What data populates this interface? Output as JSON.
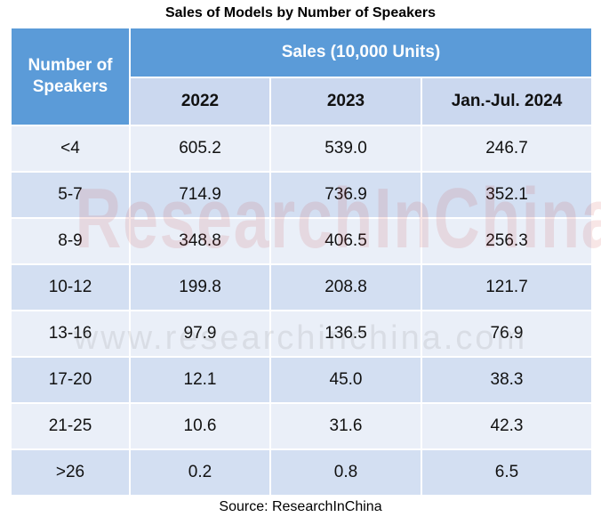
{
  "title": "Sales of Models by Number of Speakers",
  "table": {
    "header": {
      "row_label": "Number of Speakers",
      "group": "Sales (10,000 Units)",
      "columns": [
        "2022",
        "2023",
        "Jan.-Jul. 2024"
      ]
    },
    "rows": [
      [
        "<4",
        "605.2",
        "539.0",
        "246.7"
      ],
      [
        "5-7",
        "714.9",
        "736.9",
        "352.1"
      ],
      [
        "8-9",
        "348.8",
        "406.5",
        "256.3"
      ],
      [
        "10-12",
        "199.8",
        "208.8",
        "121.7"
      ],
      [
        "13-16",
        "97.9",
        "136.5",
        "76.9"
      ],
      [
        "17-20",
        "12.1",
        "45.0",
        "38.3"
      ],
      [
        "21-25",
        "10.6",
        "31.6",
        "42.3"
      ],
      [
        ">26",
        "0.2",
        "0.8",
        "6.5"
      ]
    ]
  },
  "watermark": [
    "ResearchInChina",
    "www.researchinchina.com"
  ],
  "source": "Source: ResearchInChina"
}
